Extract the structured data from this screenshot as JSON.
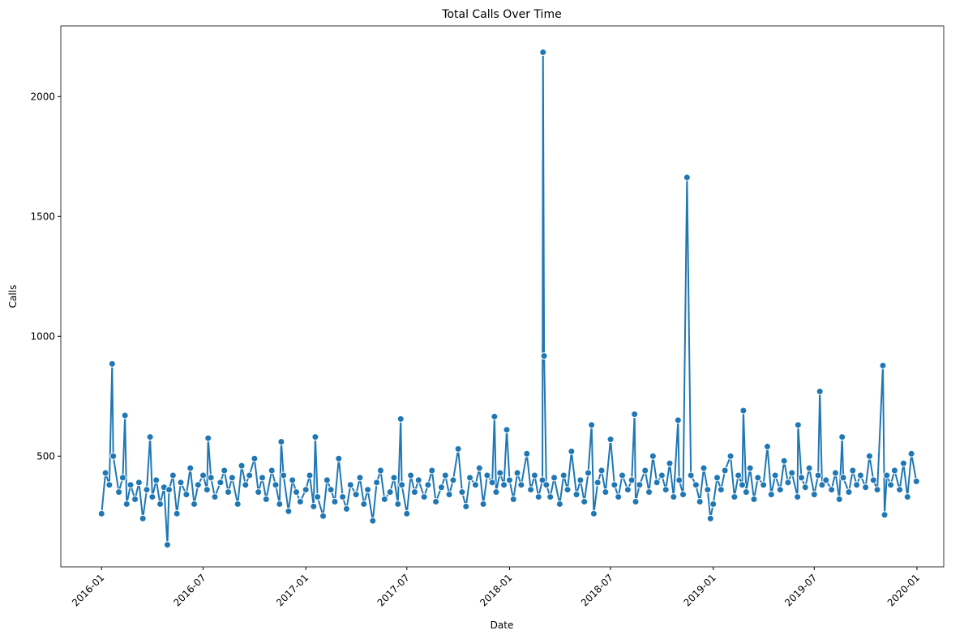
{
  "chart_data": {
    "type": "line",
    "title": "Total Calls Over Time",
    "x_label": "Date",
    "y_label": "Calls",
    "color": "#1f77b4",
    "marker": true,
    "x": [
      "2016-01-01",
      "2016-01-08",
      "2016-01-15",
      "2016-01-20",
      "2016-01-22",
      "2016-02-01",
      "2016-02-08",
      "2016-02-12",
      "2016-02-15",
      "2016-02-22",
      "2016-03-01",
      "2016-03-08",
      "2016-03-15",
      "2016-03-22",
      "2016-03-28",
      "2016-04-01",
      "2016-04-08",
      "2016-04-15",
      "2016-04-22",
      "2016-04-28",
      "2016-05-01",
      "2016-05-08",
      "2016-05-15",
      "2016-05-22",
      "2016-06-01",
      "2016-06-08",
      "2016-06-15",
      "2016-06-22",
      "2016-07-01",
      "2016-07-08",
      "2016-07-10",
      "2016-07-15",
      "2016-07-22",
      "2016-08-01",
      "2016-08-08",
      "2016-08-15",
      "2016-08-22",
      "2016-09-01",
      "2016-09-08",
      "2016-09-15",
      "2016-09-22",
      "2016-10-01",
      "2016-10-08",
      "2016-10-15",
      "2016-10-22",
      "2016-11-01",
      "2016-11-08",
      "2016-11-15",
      "2016-11-18",
      "2016-11-22",
      "2016-12-01",
      "2016-12-08",
      "2016-12-15",
      "2016-12-22",
      "2017-01-01",
      "2017-01-08",
      "2017-01-15",
      "2017-01-18",
      "2017-01-22",
      "2017-02-01",
      "2017-02-08",
      "2017-02-15",
      "2017-02-22",
      "2017-03-01",
      "2017-03-08",
      "2017-03-15",
      "2017-03-22",
      "2017-04-01",
      "2017-04-08",
      "2017-04-15",
      "2017-04-22",
      "2017-05-01",
      "2017-05-08",
      "2017-05-15",
      "2017-05-22",
      "2017-06-01",
      "2017-06-08",
      "2017-06-15",
      "2017-06-20",
      "2017-06-22",
      "2017-07-01",
      "2017-07-08",
      "2017-07-15",
      "2017-07-22",
      "2017-08-01",
      "2017-08-08",
      "2017-08-15",
      "2017-08-22",
      "2017-09-01",
      "2017-09-08",
      "2017-09-15",
      "2017-09-22",
      "2017-10-01",
      "2017-10-08",
      "2017-10-15",
      "2017-10-22",
      "2017-11-01",
      "2017-11-08",
      "2017-11-15",
      "2017-11-22",
      "2017-12-01",
      "2017-12-05",
      "2017-12-08",
      "2017-12-15",
      "2017-12-22",
      "2017-12-27",
      "2018-01-01",
      "2018-01-08",
      "2018-01-15",
      "2018-01-22",
      "2018-02-01",
      "2018-02-08",
      "2018-02-15",
      "2018-02-22",
      "2018-03-01",
      "2018-03-02",
      "2018-03-04",
      "2018-03-08",
      "2018-03-15",
      "2018-03-22",
      "2018-04-01",
      "2018-04-08",
      "2018-04-15",
      "2018-04-22",
      "2018-05-01",
      "2018-05-08",
      "2018-05-15",
      "2018-05-22",
      "2018-05-28",
      "2018-06-01",
      "2018-06-08",
      "2018-06-15",
      "2018-06-22",
      "2018-07-01",
      "2018-07-08",
      "2018-07-15",
      "2018-07-22",
      "2018-08-01",
      "2018-08-08",
      "2018-08-13",
      "2018-08-15",
      "2018-08-22",
      "2018-09-01",
      "2018-09-08",
      "2018-09-15",
      "2018-09-22",
      "2018-10-01",
      "2018-10-08",
      "2018-10-15",
      "2018-10-22",
      "2018-10-30",
      "2018-11-01",
      "2018-11-08",
      "2018-11-15",
      "2018-11-22",
      "2018-12-01",
      "2018-12-08",
      "2018-12-15",
      "2018-12-22",
      "2018-12-27",
      "2019-01-01",
      "2019-01-08",
      "2019-01-15",
      "2019-01-22",
      "2019-02-01",
      "2019-02-08",
      "2019-02-15",
      "2019-02-22",
      "2019-02-24",
      "2019-03-01",
      "2019-03-08",
      "2019-03-15",
      "2019-03-22",
      "2019-04-01",
      "2019-04-08",
      "2019-04-15",
      "2019-04-22",
      "2019-05-01",
      "2019-05-08",
      "2019-05-15",
      "2019-05-22",
      "2019-06-01",
      "2019-06-02",
      "2019-06-08",
      "2019-06-15",
      "2019-06-22",
      "2019-07-01",
      "2019-07-08",
      "2019-07-11",
      "2019-07-15",
      "2019-07-22",
      "2019-08-01",
      "2019-08-08",
      "2019-08-15",
      "2019-08-20",
      "2019-08-22",
      "2019-09-01",
      "2019-09-08",
      "2019-09-15",
      "2019-09-22",
      "2019-10-01",
      "2019-10-08",
      "2019-10-15",
      "2019-10-22",
      "2019-11-01",
      "2019-11-04",
      "2019-11-08",
      "2019-11-15",
      "2019-11-22",
      "2019-12-01",
      "2019-12-08",
      "2019-12-15",
      "2019-12-22",
      "2019-12-31"
    ],
    "values": [
      260,
      430,
      380,
      885,
      500,
      350,
      410,
      670,
      300,
      380,
      320,
      390,
      240,
      360,
      580,
      330,
      400,
      300,
      370,
      130,
      360,
      420,
      260,
      390,
      340,
      450,
      300,
      380,
      420,
      360,
      575,
      410,
      330,
      390,
      440,
      350,
      410,
      300,
      460,
      380,
      420,
      490,
      350,
      410,
      320,
      440,
      380,
      300,
      560,
      420,
      270,
      400,
      350,
      310,
      360,
      420,
      290,
      580,
      330,
      250,
      400,
      360,
      310,
      490,
      330,
      280,
      380,
      340,
      410,
      300,
      360,
      230,
      390,
      440,
      320,
      350,
      410,
      300,
      655,
      380,
      260,
      420,
      350,
      400,
      330,
      380,
      440,
      310,
      370,
      420,
      340,
      400,
      530,
      350,
      290,
      410,
      380,
      450,
      300,
      420,
      390,
      665,
      350,
      430,
      380,
      610,
      400,
      320,
      430,
      380,
      510,
      360,
      420,
      330,
      400,
      2185,
      918,
      380,
      330,
      410,
      300,
      420,
      360,
      520,
      340,
      400,
      310,
      430,
      630,
      260,
      390,
      440,
      350,
      570,
      380,
      330,
      420,
      360,
      400,
      675,
      310,
      380,
      440,
      350,
      500,
      390,
      420,
      360,
      470,
      330,
      650,
      400,
      340,
      1663,
      420,
      380,
      310,
      450,
      360,
      240,
      300,
      410,
      360,
      440,
      500,
      330,
      420,
      380,
      690,
      350,
      450,
      320,
      410,
      380,
      540,
      340,
      420,
      360,
      480,
      390,
      430,
      330,
      630,
      410,
      370,
      450,
      340,
      420,
      770,
      380,
      400,
      360,
      430,
      320,
      580,
      410,
      350,
      440,
      380,
      420,
      370,
      500,
      400,
      360,
      878,
      255,
      420,
      380,
      440,
      360,
      470,
      330,
      510,
      395
    ],
    "xlim": [
      "2015-10-20",
      "2020-02-18"
    ],
    "xticks": [
      {
        "value": "2016-01-01",
        "label": "2016-01"
      },
      {
        "value": "2016-07-01",
        "label": "2016-07"
      },
      {
        "value": "2017-01-01",
        "label": "2017-01"
      },
      {
        "value": "2017-07-01",
        "label": "2017-07"
      },
      {
        "value": "2018-01-01",
        "label": "2018-01"
      },
      {
        "value": "2018-07-01",
        "label": "2018-07"
      },
      {
        "value": "2019-01-01",
        "label": "2019-01"
      },
      {
        "value": "2019-07-01",
        "label": "2019-07"
      },
      {
        "value": "2020-01-01",
        "label": "2020-01"
      }
    ],
    "ylim": [
      38,
      2295
    ],
    "yticks": [
      500,
      1000,
      1500,
      2000
    ],
    "grid": false
  }
}
